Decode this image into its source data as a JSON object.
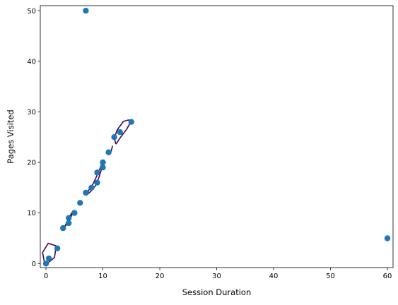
{
  "chart_data": {
    "type": "scatter",
    "title": "",
    "xlabel": "Session Duration",
    "ylabel": "Pages Visited",
    "xlim": [
      -1,
      61
    ],
    "ylim": [
      -0.8,
      51
    ],
    "xticks": [
      0,
      10,
      20,
      30,
      40,
      50,
      60
    ],
    "yticks": [
      0,
      10,
      20,
      30,
      40,
      50
    ],
    "grid": false,
    "legend": "none",
    "marker_color": "#1f77b4",
    "contour_color": "#440154",
    "points": [
      {
        "x": 0,
        "y": 0
      },
      {
        "x": 0.5,
        "y": 1
      },
      {
        "x": 2,
        "y": 3
      },
      {
        "x": 3,
        "y": 7
      },
      {
        "x": 4,
        "y": 8
      },
      {
        "x": 4,
        "y": 9
      },
      {
        "x": 5,
        "y": 10
      },
      {
        "x": 6,
        "y": 12
      },
      {
        "x": 7,
        "y": 14
      },
      {
        "x": 8,
        "y": 15
      },
      {
        "x": 9,
        "y": 16
      },
      {
        "x": 9,
        "y": 18
      },
      {
        "x": 10,
        "y": 19
      },
      {
        "x": 10,
        "y": 20
      },
      {
        "x": 11,
        "y": 22
      },
      {
        "x": 12,
        "y": 25
      },
      {
        "x": 13,
        "y": 26
      },
      {
        "x": 15,
        "y": 28
      },
      {
        "x": 7,
        "y": 50
      },
      {
        "x": 60,
        "y": 5
      }
    ],
    "contours": [
      [
        [
          0,
          -0.2
        ],
        [
          1.5,
          1.2
        ],
        [
          1.8,
          3.5
        ],
        [
          0.4,
          4.0
        ],
        [
          -0.6,
          2.2
        ],
        [
          -0.3,
          0.4
        ],
        [
          0,
          -0.2
        ]
      ],
      [
        [
          3.3,
          7.3
        ],
        [
          3.7,
          7.8
        ],
        [
          4.3,
          9.0
        ],
        [
          4.8,
          10.2
        ],
        [
          4.5,
          10.0
        ],
        [
          3.9,
          8.7
        ],
        [
          3.3,
          7.3
        ]
      ],
      [
        [
          7.2,
          13.6
        ],
        [
          7.9,
          14.3
        ],
        [
          8.7,
          15.4
        ],
        [
          9.3,
          17.0
        ],
        [
          9.8,
          18.8
        ],
        [
          10.1,
          20.3
        ],
        [
          9.9,
          20.0
        ],
        [
          9.2,
          18.0
        ],
        [
          8.3,
          15.8
        ],
        [
          7.6,
          14.7
        ],
        [
          7.2,
          13.6
        ]
      ],
      [
        [
          11.2,
          21.5
        ],
        [
          11.5,
          22.4
        ],
        [
          11.7,
          23.3
        ]
      ],
      [
        [
          12.3,
          23.6
        ],
        [
          13.0,
          24.8
        ],
        [
          14.2,
          26.6
        ],
        [
          14.9,
          28.0
        ],
        [
          14.5,
          28.4
        ],
        [
          13.6,
          28.1
        ],
        [
          12.5,
          26.4
        ],
        [
          12.0,
          24.8
        ],
        [
          12.3,
          23.6
        ]
      ]
    ]
  }
}
